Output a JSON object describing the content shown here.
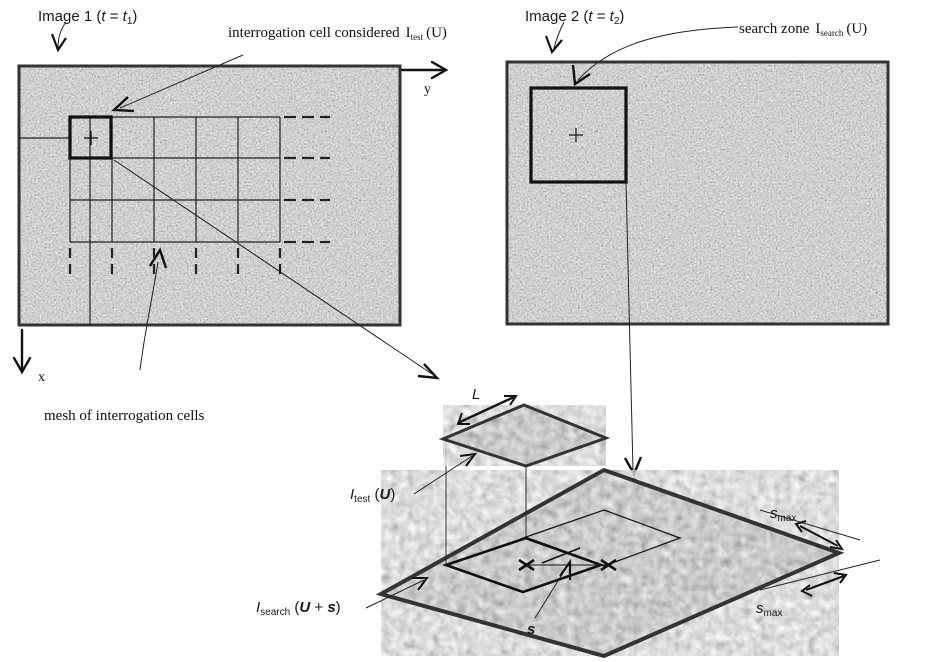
{
  "image1": {
    "label_prefix": "Image 1 (",
    "label_t": "t",
    "label_eq": " = ",
    "label_t1": "t",
    "label_t1_sub": "1",
    "label_suffix": ")"
  },
  "image2": {
    "label_prefix": "Image 2 (",
    "label_t": "t",
    "label_eq": " = ",
    "label_t2": "t",
    "label_t2_sub": "2",
    "label_suffix": ")"
  },
  "annotations": {
    "interrogation_cell": "interrogation cell considered",
    "itest_symbol": "I",
    "itest_sub": "test",
    "itest_arg": "(U)",
    "search_zone": "search zone",
    "isearch_symbol": "I",
    "isearch_sub": "search",
    "isearch_arg": "(U)",
    "axis_y": "y",
    "axis_x": "x",
    "mesh": "mesh of interrogation cells"
  },
  "bottom": {
    "L": "L",
    "itest_I": "I",
    "itest_sub": "test",
    "itest_arg_open": " (",
    "itest_arg_U": "U",
    "itest_arg_close": ")",
    "isearch_I": "I",
    "isearch_sub": "search",
    "isearch_arg_open": " (",
    "isearch_arg_U": "U",
    "isearch_arg_plus": " + ",
    "isearch_arg_s": "s",
    "isearch_arg_close": ")",
    "s_label": "s",
    "smax_s": "s",
    "smax_sub": "max"
  },
  "colors": {
    "speckle_base": "#a8a8a8",
    "frame": "#333333"
  }
}
